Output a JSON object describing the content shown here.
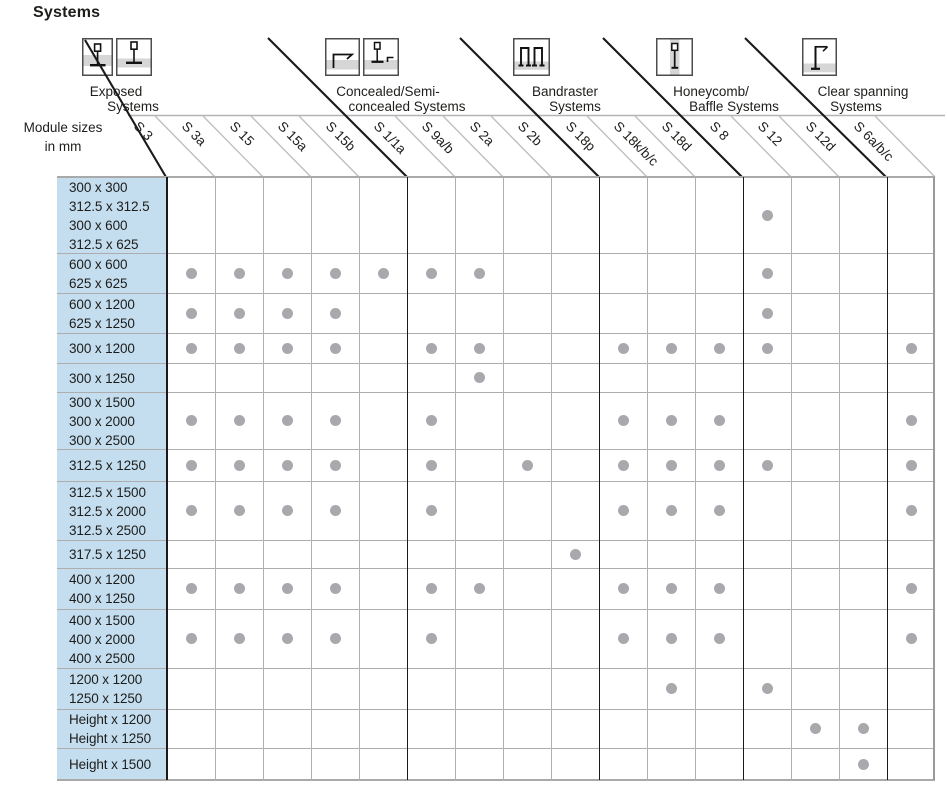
{
  "title": "Systems",
  "module_label": {
    "line1": "Module sizes",
    "line2": "in mm"
  },
  "groups": [
    {
      "id": "exposed",
      "line1": "Exposed",
      "line2": "Systems"
    },
    {
      "id": "concealed",
      "line1": "Concealed/Semi-",
      "line2": "concealed Systems"
    },
    {
      "id": "bandraster",
      "line1": "Bandraster",
      "line2": "Systems"
    },
    {
      "id": "honeycomb",
      "line1": "Honeycomb/",
      "line2": "Baffle Systems"
    },
    {
      "id": "clear-spanning",
      "line1": "Clear spanning",
      "line2": "Systems"
    }
  ],
  "columns": [
    {
      "label": "S 3",
      "group": 0
    },
    {
      "label": "S 3a",
      "group": 0
    },
    {
      "label": "S 15",
      "group": 0
    },
    {
      "label": "S 15a",
      "group": 0
    },
    {
      "label": "S 15b",
      "group": 0
    },
    {
      "label": "S 1/1a",
      "group": 1
    },
    {
      "label": "S 9a/b",
      "group": 1
    },
    {
      "label": "S 2a",
      "group": 1
    },
    {
      "label": "S 2b",
      "group": 1
    },
    {
      "label": "S 18p",
      "group": 2
    },
    {
      "label": "S 18k/b/c",
      "group": 2
    },
    {
      "label": "S 18d",
      "group": 2
    },
    {
      "label": "S 8",
      "group": 3
    },
    {
      "label": "S 12",
      "group": 3
    },
    {
      "label": "S 12d",
      "group": 3
    },
    {
      "label": "S 6a/b/c",
      "group": 4
    }
  ],
  "rows": [
    {
      "sizes": [
        "300 x 300",
        "312.5 x 312.5",
        "300 x 600",
        "312.5 x 625"
      ],
      "dots": [
        "S 8"
      ]
    },
    {
      "sizes": [
        "600 x 600",
        "625 x 625"
      ],
      "dots": [
        "S 3",
        "S 3a",
        "S 15",
        "S 15a",
        "S 15b",
        "S 1/1a",
        "S 9a/b",
        "S 8"
      ]
    },
    {
      "sizes": [
        "600 x 1200",
        "625 x 1250"
      ],
      "dots": [
        "S 3",
        "S 3a",
        "S 15",
        "S 15a",
        "S 8"
      ]
    },
    {
      "sizes": [
        "300 x 1200"
      ],
      "dots": [
        "S 3",
        "S 3a",
        "S 15",
        "S 15a",
        "S 1/1a",
        "S 9a/b",
        "S 18p",
        "S 18k/b/c",
        "S 18d",
        "S 8",
        "S 6a/b/c"
      ]
    },
    {
      "sizes": [
        "300 x 1250"
      ],
      "dots": [
        "S 9a/b"
      ]
    },
    {
      "sizes": [
        "300 x 1500",
        "300 x 2000",
        "300 x 2500"
      ],
      "dots": [
        "S 3",
        "S 3a",
        "S 15",
        "S 15a",
        "S 1/1a",
        "S 18p",
        "S 18k/b/c",
        "S 18d",
        "S 6a/b/c"
      ]
    },
    {
      "sizes": [
        "312.5 x 1250"
      ],
      "dots": [
        "S 3",
        "S 3a",
        "S 15",
        "S 15a",
        "S 1/1a",
        "S 2a",
        "S 18p",
        "S 18k/b/c",
        "S 18d",
        "S 8",
        "S 6a/b/c"
      ]
    },
    {
      "sizes": [
        "312.5 x 1500",
        "312.5 x 2000",
        "312.5 x 2500"
      ],
      "dots": [
        "S 3",
        "S 3a",
        "S 15",
        "S 15a",
        "S 1/1a",
        "S 18p",
        "S 18k/b/c",
        "S 18d",
        "S 6a/b/c"
      ]
    },
    {
      "sizes": [
        "317.5 x 1250"
      ],
      "dots": [
        "S 2b"
      ]
    },
    {
      "sizes": [
        "400 x 1200",
        "400 x 1250"
      ],
      "dots": [
        "S 3",
        "S 3a",
        "S 15",
        "S 15a",
        "S 1/1a",
        "S 9a/b",
        "S 18p",
        "S 18k/b/c",
        "S 18d",
        "S 6a/b/c"
      ]
    },
    {
      "sizes": [
        "400 x 1500",
        "400 x 2000",
        "400 x 2500"
      ],
      "dots": [
        "S 3",
        "S 3a",
        "S 15",
        "S 15a",
        "S 1/1a",
        "S 18p",
        "S 18k/b/c",
        "S 18d",
        "S 6a/b/c"
      ]
    },
    {
      "sizes": [
        "1200 x 1200",
        "1250 x 1250"
      ],
      "dots": [
        "S 18k/b/c",
        "S 8"
      ]
    },
    {
      "sizes": [
        "Height x 1200",
        "Height x 1250"
      ],
      "dots": [
        "S 12",
        "S 12d"
      ]
    },
    {
      "sizes": [
        "Height x 1500"
      ],
      "dots": [
        "S 12d"
      ]
    }
  ],
  "colors": {
    "row_label_bg": "#c4def0",
    "dot": "#a7a9ac",
    "grid_line": "#b0b0b0",
    "separator": "#1a1a1a",
    "icon_band": "#d6d6d6"
  }
}
